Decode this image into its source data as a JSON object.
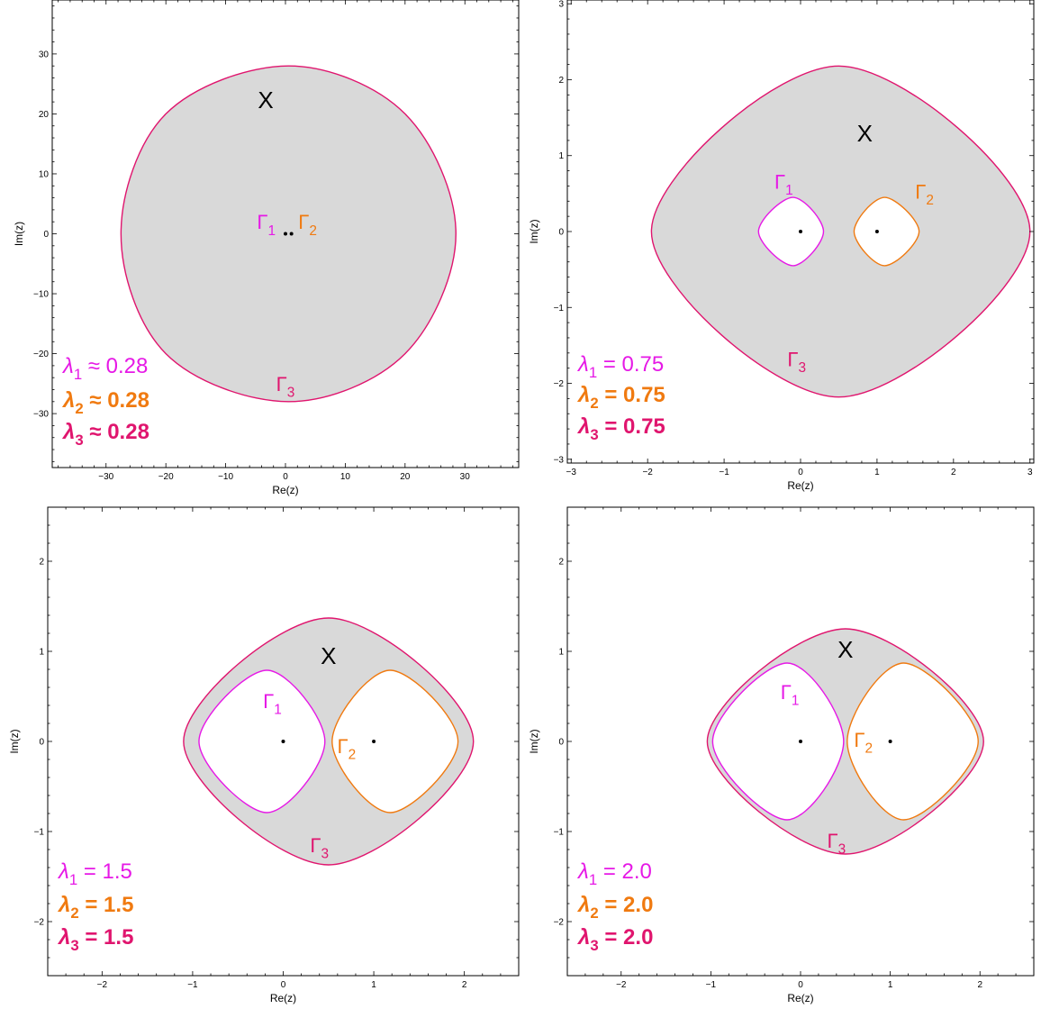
{
  "chart_data": [
    {
      "type": "contour",
      "xlabel": "Re(z)",
      "ylabel": "Im(z)",
      "xlim": [
        -39,
        39
      ],
      "ylim": [
        -39,
        39
      ],
      "xticks": [
        -30,
        -20,
        -10,
        0,
        10,
        20,
        30
      ],
      "yticks": [
        -30,
        -20,
        -10,
        0,
        10,
        20,
        30
      ],
      "points": [
        [
          0,
          0
        ],
        [
          1,
          0
        ]
      ],
      "region_label": "X",
      "region_label_pos": [
        -3.3,
        22
      ],
      "curves": [
        {
          "name": "Γ1",
          "name_base": "Γ",
          "name_sub": "1",
          "color": "#e619e6",
          "label_pos": [
            -3.2,
            2
          ],
          "kind": "hole",
          "samples": [
            [
              0,
              0.05
            ],
            [
              0,
              0
            ],
            [
              0,
              -0.05
            ],
            [
              -0.05,
              0
            ]
          ]
        },
        {
          "name": "Γ2",
          "name_base": "Γ",
          "name_sub": "2",
          "color": "#f07a10",
          "label_pos": [
            3.7,
            2
          ],
          "kind": "hole",
          "samples": [
            [
              1,
              0.05
            ],
            [
              1,
              0
            ],
            [
              1,
              -0.05
            ],
            [
              1.05,
              0
            ]
          ]
        },
        {
          "name": "Γ3",
          "name_base": "Γ",
          "name_sub": "3",
          "color": "#e0156e",
          "label_pos": [
            0,
            -25
          ],
          "kind": "outer",
          "samples": [
            [
              28.5,
              0
            ],
            [
              20,
              20
            ],
            [
              0.5,
              28
            ],
            [
              -20,
              20
            ],
            [
              -27.5,
              0
            ],
            [
              -20,
              -20
            ],
            [
              0.5,
              -28
            ],
            [
              20,
              -20
            ]
          ]
        }
      ],
      "lambdas": [
        {
          "base": "λ",
          "sub": "1",
          "rel": " ≈ ",
          "value": "0.28",
          "color": "#e619e6",
          "bold": false
        },
        {
          "base": "λ",
          "sub": "2",
          "rel": " ≈ ",
          "value": "0.28",
          "color": "#f07a10",
          "bold": true
        },
        {
          "base": "λ",
          "sub": "3",
          "rel": " ≈ ",
          "value": "0.28",
          "color": "#e0156e",
          "bold": true
        }
      ]
    },
    {
      "type": "contour",
      "xlabel": "Re(z)",
      "ylabel": "Im(z)",
      "xlim": [
        -3.05,
        3.05
      ],
      "ylim": [
        -3.05,
        3.05
      ],
      "xticks": [
        -3,
        -2,
        -1,
        0,
        1,
        2,
        3
      ],
      "yticks": [
        -3,
        -2,
        -1,
        0,
        1,
        2,
        3
      ],
      "points": [
        [
          0,
          0
        ],
        [
          1,
          0
        ]
      ],
      "region_label": "X",
      "region_label_pos": [
        0.84,
        1.27
      ],
      "curves": [
        {
          "name": "Γ1",
          "name_base": "Γ",
          "name_sub": "1",
          "color": "#e619e6",
          "label_pos": [
            -0.22,
            0.66
          ],
          "kind": "hole",
          "samples": [
            [
              0.3,
              0
            ],
            [
              -0.1,
              0.45
            ],
            [
              -0.55,
              0
            ],
            [
              -0.1,
              -0.45
            ]
          ]
        },
        {
          "name": "Γ2",
          "name_base": "Γ",
          "name_sub": "2",
          "color": "#f07a10",
          "label_pos": [
            1.62,
            0.53
          ],
          "kind": "hole",
          "samples": [
            [
              1.55,
              0
            ],
            [
              1.1,
              0.45
            ],
            [
              0.7,
              0
            ],
            [
              1.1,
              -0.45
            ]
          ]
        },
        {
          "name": "Γ3",
          "name_base": "Γ",
          "name_sub": "3",
          "color": "#e0156e",
          "label_pos": [
            -0.05,
            -1.68
          ],
          "kind": "outer",
          "samples": [
            [
              3,
              0
            ],
            [
              0.5,
              2.18
            ],
            [
              -1.95,
              0
            ],
            [
              0.5,
              -2.18
            ]
          ]
        }
      ],
      "lambdas": [
        {
          "base": "λ",
          "sub": "1",
          "rel": " = ",
          "value": "0.75",
          "color": "#e619e6",
          "bold": false
        },
        {
          "base": "λ",
          "sub": "2",
          "rel": " = ",
          "value": "0.75",
          "color": "#f07a10",
          "bold": true
        },
        {
          "base": "λ",
          "sub": "3",
          "rel": " = ",
          "value": "0.75",
          "color": "#e0156e",
          "bold": true
        }
      ]
    },
    {
      "type": "contour",
      "xlabel": "Re(z)",
      "ylabel": "Im(z)",
      "xlim": [
        -2.6,
        2.6
      ],
      "ylim": [
        -2.6,
        2.6
      ],
      "xticks": [
        -2,
        -1,
        0,
        1,
        2
      ],
      "yticks": [
        -2,
        -1,
        0,
        1,
        2
      ],
      "points": [
        [
          0,
          0
        ],
        [
          1,
          0
        ]
      ],
      "region_label": "X",
      "region_label_pos": [
        0.5,
        0.93
      ],
      "curves": [
        {
          "name": "Γ1",
          "name_base": "Γ",
          "name_sub": "1",
          "color": "#e619e6",
          "label_pos": [
            -0.12,
            0.45
          ],
          "kind": "hole",
          "samples": [
            [
              0.46,
              0
            ],
            [
              -0.18,
              0.79
            ],
            [
              -0.93,
              0
            ],
            [
              -0.18,
              -0.79
            ]
          ]
        },
        {
          "name": "Γ2",
          "name_base": "Γ",
          "name_sub": "2",
          "color": "#f07a10",
          "label_pos": [
            0.7,
            -0.05
          ],
          "kind": "hole",
          "samples": [
            [
              1.93,
              0
            ],
            [
              1.18,
              0.79
            ],
            [
              0.54,
              0
            ],
            [
              1.18,
              -0.79
            ]
          ]
        },
        {
          "name": "Γ3",
          "name_base": "Γ",
          "name_sub": "3",
          "color": "#e0156e",
          "label_pos": [
            0.4,
            -1.15
          ],
          "kind": "outer",
          "samples": [
            [
              2.1,
              0
            ],
            [
              0.5,
              1.37
            ],
            [
              -1.1,
              0
            ],
            [
              0.5,
              -1.37
            ]
          ]
        }
      ],
      "lambdas": [
        {
          "base": "λ",
          "sub": "1",
          "rel": " = ",
          "value": "1.5",
          "color": "#e619e6",
          "bold": false
        },
        {
          "base": "λ",
          "sub": "2",
          "rel": " = ",
          "value": "1.5",
          "color": "#f07a10",
          "bold": true
        },
        {
          "base": "λ",
          "sub": "3",
          "rel": " = ",
          "value": "1.5",
          "color": "#e0156e",
          "bold": true
        }
      ]
    },
    {
      "type": "contour",
      "xlabel": "Re(z)",
      "ylabel": "Im(z)",
      "xlim": [
        -2.6,
        2.6
      ],
      "ylim": [
        -2.6,
        2.6
      ],
      "xticks": [
        -2,
        -1,
        0,
        1,
        2
      ],
      "yticks": [
        -2,
        -1,
        0,
        1,
        2
      ],
      "points": [
        [
          0,
          0
        ],
        [
          1,
          0
        ]
      ],
      "region_label": "X",
      "region_label_pos": [
        0.5,
        1.0
      ],
      "curves": [
        {
          "name": "Γ1",
          "name_base": "Γ",
          "name_sub": "1",
          "color": "#e619e6",
          "label_pos": [
            -0.12,
            0.55
          ],
          "kind": "hole",
          "samples": [
            [
              0.48,
              0
            ],
            [
              -0.15,
              0.87
            ],
            [
              -0.98,
              0
            ],
            [
              -0.15,
              -0.87
            ]
          ]
        },
        {
          "name": "Γ2",
          "name_base": "Γ",
          "name_sub": "2",
          "color": "#f07a10",
          "label_pos": [
            0.7,
            0.02
          ],
          "kind": "hole",
          "samples": [
            [
              1.98,
              0
            ],
            [
              1.15,
              0.87
            ],
            [
              0.52,
              0
            ],
            [
              1.15,
              -0.87
            ]
          ]
        },
        {
          "name": "Γ3",
          "name_base": "Γ",
          "name_sub": "3",
          "color": "#e0156e",
          "label_pos": [
            0.4,
            -1.1
          ],
          "kind": "outer",
          "samples": [
            [
              2.04,
              0
            ],
            [
              0.5,
              1.25
            ],
            [
              -1.04,
              0
            ],
            [
              0.5,
              -1.25
            ]
          ]
        }
      ],
      "lambdas": [
        {
          "base": "λ",
          "sub": "1",
          "rel": " = ",
          "value": "2.0",
          "color": "#e619e6",
          "bold": false
        },
        {
          "base": "λ",
          "sub": "2",
          "rel": " = ",
          "value": "2.0",
          "color": "#f07a10",
          "bold": true
        },
        {
          "base": "λ",
          "sub": "3",
          "rel": " = ",
          "value": "2.0",
          "color": "#e0156e",
          "bold": true
        }
      ]
    }
  ]
}
